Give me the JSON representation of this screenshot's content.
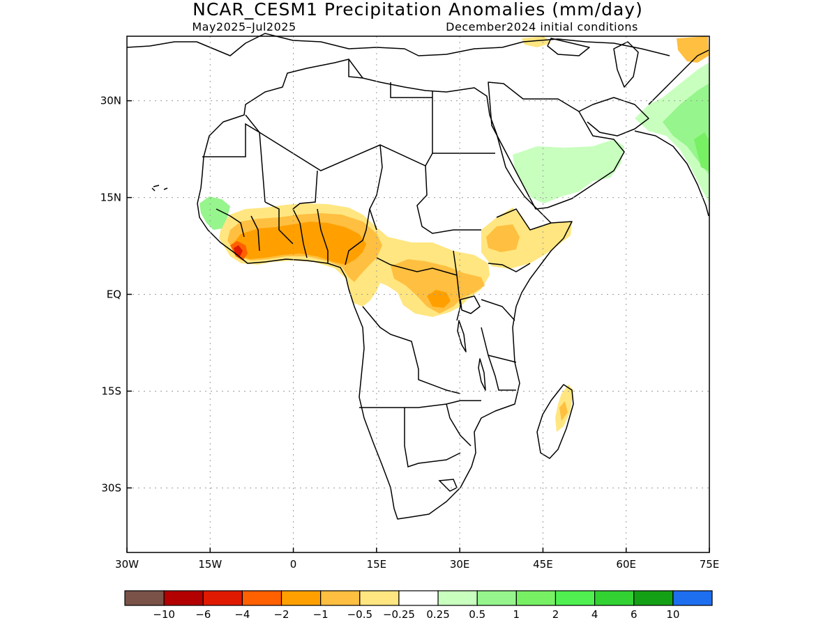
{
  "title": "NCAR_CESM1 Precipitation Anomalies (mm/day)",
  "subtitle_left": "May2025–Jul2025",
  "subtitle_right": "December2024 initial conditions",
  "map": {
    "lon_range": [
      -30,
      75
    ],
    "lat_range": [
      -40,
      40
    ],
    "lon_ticks": [
      {
        "value": -30,
        "label": "30W"
      },
      {
        "value": -15,
        "label": "15W"
      },
      {
        "value": 0,
        "label": "0"
      },
      {
        "value": 15,
        "label": "15E"
      },
      {
        "value": 30,
        "label": "30E"
      },
      {
        "value": 45,
        "label": "45E"
      },
      {
        "value": 60,
        "label": "60E"
      },
      {
        "value": 75,
        "label": "75E"
      }
    ],
    "lat_ticks": [
      {
        "value": 30,
        "label": "30N"
      },
      {
        "value": 15,
        "label": "15N"
      },
      {
        "value": 0,
        "label": "EQ"
      },
      {
        "value": -15,
        "label": "15S"
      },
      {
        "value": -30,
        "label": "30S"
      }
    ],
    "grid": "dotted"
  },
  "colorbar": {
    "colors": [
      "#7a5248",
      "#b30000",
      "#e01a00",
      "#ff6000",
      "#ffa000",
      "#ffbf40",
      "#ffe680",
      "#ffffff",
      "#c8ffbe",
      "#96f58c",
      "#78f064",
      "#50f050",
      "#32d232",
      "#14a014",
      "#1e6ef0"
    ],
    "labels": [
      "−10",
      "−6",
      "−4",
      "−2",
      "−1",
      "−0.5",
      "−0.25",
      "0.25",
      "0.5",
      "1",
      "2",
      "4",
      "6",
      "10"
    ]
  }
}
